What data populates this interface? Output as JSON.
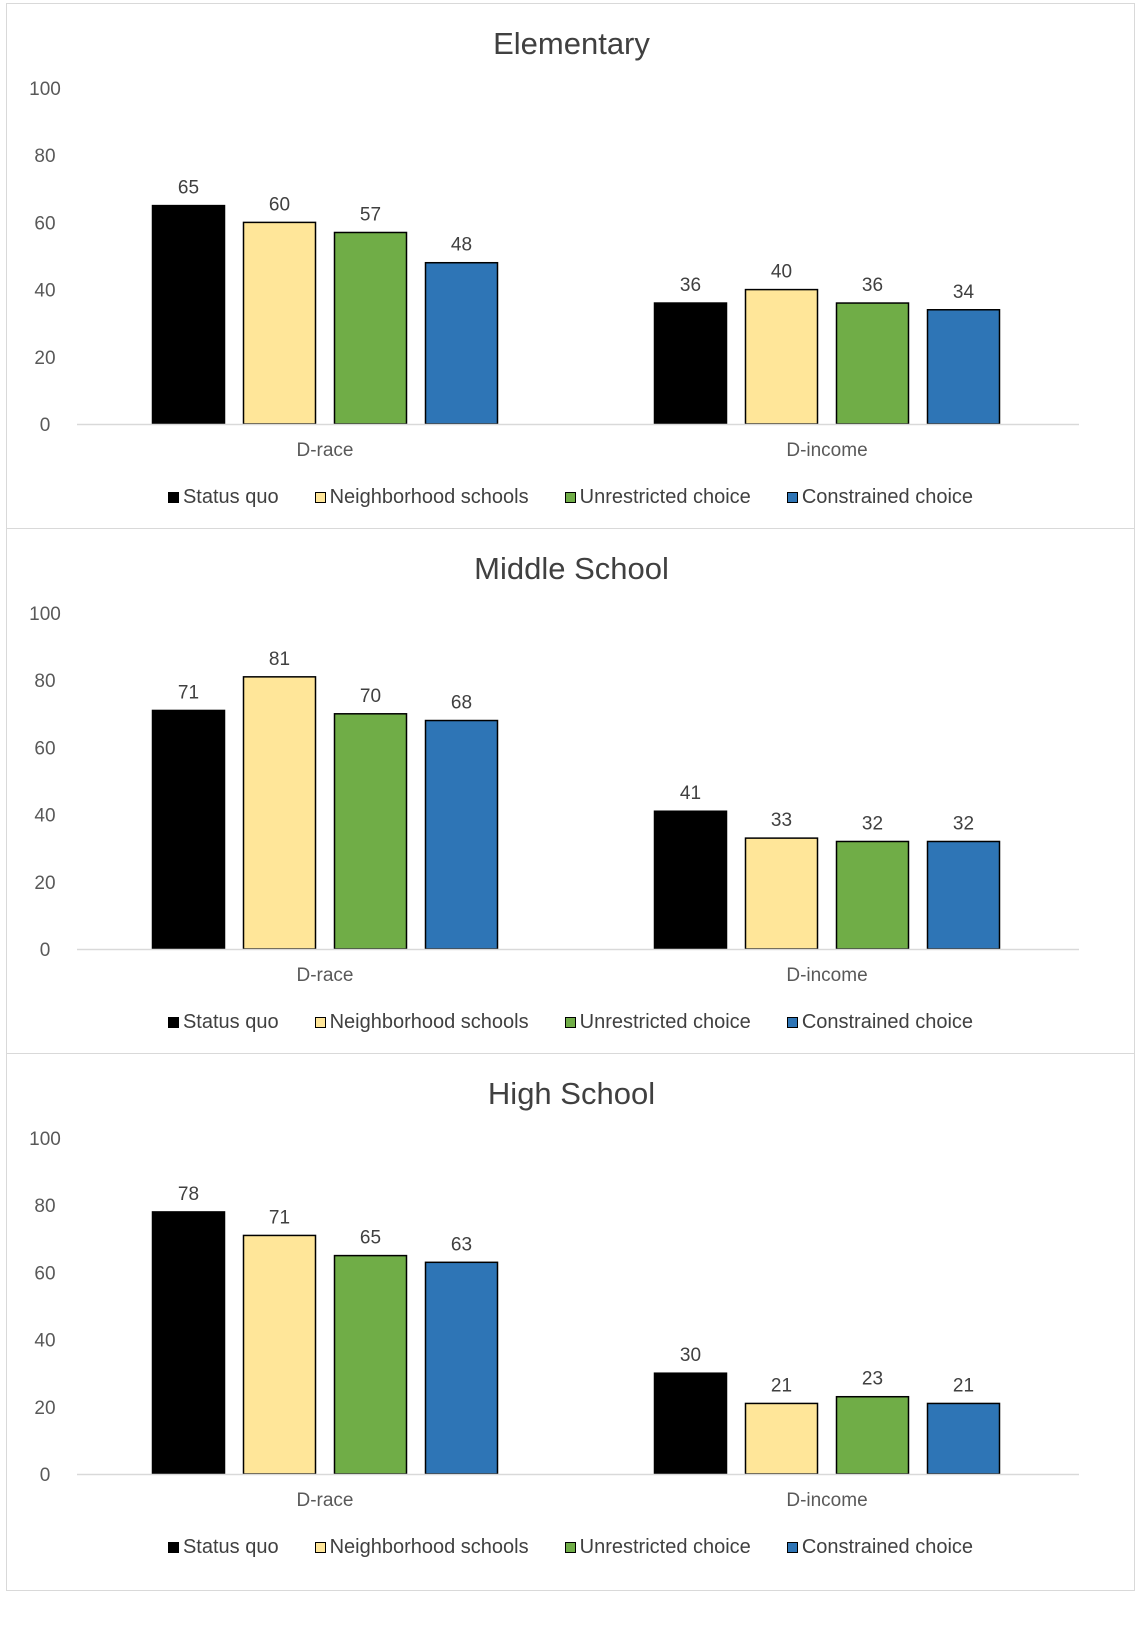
{
  "chart_data": [
    {
      "type": "bar",
      "title": "Elementary",
      "categories": [
        "D-race",
        "D-income"
      ],
      "series": [
        {
          "name": "Status quo",
          "values": [
            65,
            36
          ]
        },
        {
          "name": "Neighborhood schools",
          "values": [
            60,
            40
          ]
        },
        {
          "name": "Unrestricted choice",
          "values": [
            57,
            36
          ]
        },
        {
          "name": "Constrained choice",
          "values": [
            48,
            34
          ]
        }
      ],
      "ylim": [
        0,
        100
      ],
      "yticks": [
        0,
        20,
        40,
        60,
        80,
        100
      ],
      "legend": "bottom",
      "grid": false
    },
    {
      "type": "bar",
      "title": "Middle School",
      "categories": [
        "D-race",
        "D-income"
      ],
      "series": [
        {
          "name": "Status quo",
          "values": [
            71,
            41
          ]
        },
        {
          "name": "Neighborhood schools",
          "values": [
            81,
            33
          ]
        },
        {
          "name": "Unrestricted choice",
          "values": [
            70,
            32
          ]
        },
        {
          "name": "Constrained choice",
          "values": [
            68,
            32
          ]
        }
      ],
      "ylim": [
        0,
        100
      ],
      "yticks": [
        0,
        20,
        40,
        60,
        80,
        100
      ],
      "legend": "bottom",
      "grid": false
    },
    {
      "type": "bar",
      "title": "High School",
      "categories": [
        "D-race",
        "D-income"
      ],
      "series": [
        {
          "name": "Status quo",
          "values": [
            78,
            30
          ]
        },
        {
          "name": "Neighborhood schools",
          "values": [
            71,
            21
          ]
        },
        {
          "name": "Unrestricted choice",
          "values": [
            65,
            23
          ]
        },
        {
          "name": "Constrained choice",
          "values": [
            63,
            21
          ]
        }
      ],
      "ylim": [
        0,
        100
      ],
      "yticks": [
        0,
        20,
        40,
        60,
        80,
        100
      ],
      "legend": "bottom",
      "grid": false
    }
  ],
  "colors": {
    "Status quo": "#000000",
    "Neighborhood schools": "#ffe699",
    "Unrestricted choice": "#70ad47",
    "Constrained choice": "#2e75b6"
  }
}
